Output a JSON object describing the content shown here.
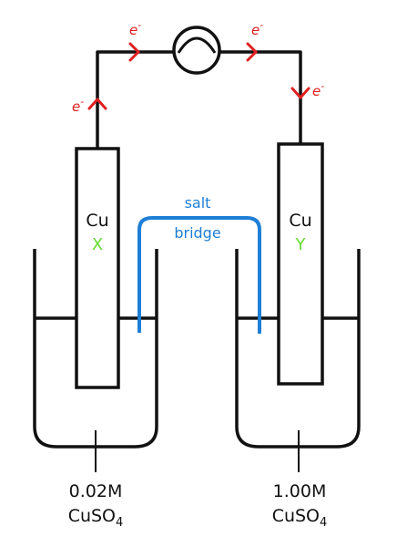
{
  "electrodes": {
    "left": {
      "material": "Cu",
      "name": "X"
    },
    "right": {
      "material": "Cu",
      "name": "Y"
    }
  },
  "salt_bridge": {
    "line1": "salt",
    "line2": "bridge"
  },
  "electron_label": "e",
  "electron_charge": "-",
  "solutions": {
    "left": {
      "concentration": "0.02M",
      "formula": "CuSO",
      "subscript": "4"
    },
    "right": {
      "concentration": "1.00M",
      "formula": "CuSO",
      "subscript": "4"
    }
  },
  "colors": {
    "ink": "#111111",
    "electron": "#e02020",
    "salt_bridge": "#1e7fd6",
    "electrode_label": "#66dd33"
  }
}
